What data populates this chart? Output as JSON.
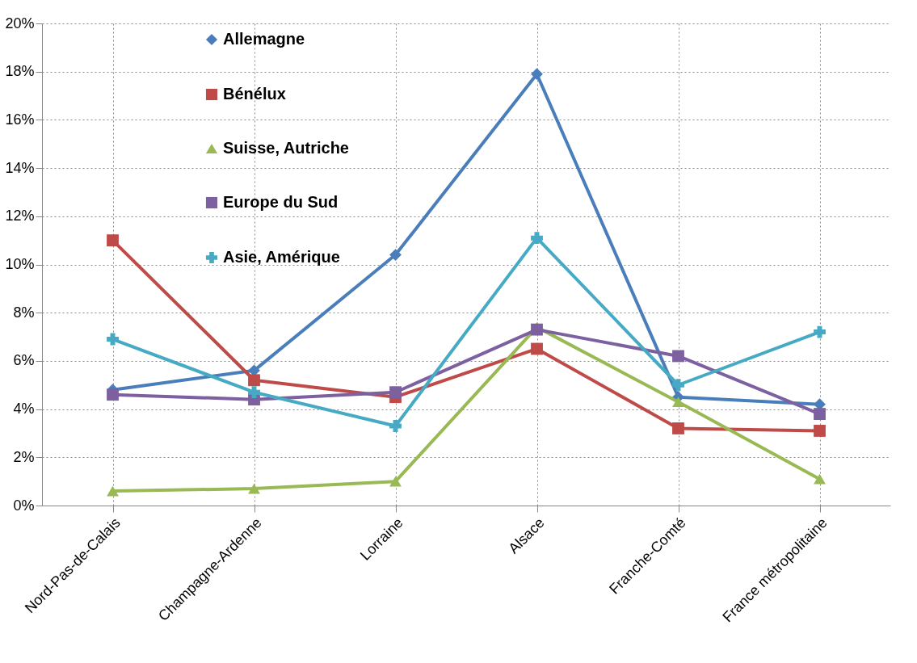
{
  "chart_data": {
    "type": "line",
    "categories": [
      "Nord-Pas-de-Calais",
      "Champagne-Ardenne",
      "Lorraine",
      "Alsace",
      "Franche-Comté",
      "France métropolitaine"
    ],
    "series": [
      {
        "name": "Allemagne",
        "color": "#4a7ebb",
        "marker": "diamond",
        "values": [
          4.8,
          5.6,
          10.4,
          17.9,
          4.5,
          4.2
        ]
      },
      {
        "name": "Bénélux",
        "color": "#be4b48",
        "marker": "square",
        "values": [
          11.0,
          5.2,
          4.5,
          6.5,
          3.2,
          3.1
        ]
      },
      {
        "name": "Suisse, Autriche",
        "color": "#98b954",
        "marker": "triangle",
        "values": [
          0.6,
          0.7,
          1.0,
          7.4,
          4.3,
          1.1
        ]
      },
      {
        "name": "Europe du Sud",
        "color": "#7d60a0",
        "marker": "square",
        "values": [
          4.6,
          4.4,
          4.7,
          7.3,
          6.2,
          3.8
        ]
      },
      {
        "name": "Asie, Amérique",
        "color": "#46aac5",
        "marker": "cross",
        "values": [
          6.9,
          4.7,
          3.3,
          11.1,
          5.0,
          7.2
        ]
      }
    ],
    "ylim": [
      0,
      20
    ],
    "yticks": [
      {
        "value": 0,
        "label": "0%"
      },
      {
        "value": 2,
        "label": "2%"
      },
      {
        "value": 4,
        "label": "4%"
      },
      {
        "value": 6,
        "label": "6%"
      },
      {
        "value": 8,
        "label": "8%"
      },
      {
        "value": 10,
        "label": "10%"
      },
      {
        "value": 12,
        "label": "12%"
      },
      {
        "value": 14,
        "label": "14%"
      },
      {
        "value": 16,
        "label": "16%"
      },
      {
        "value": 18,
        "label": "18%"
      },
      {
        "value": 20,
        "label": "20%"
      }
    ],
    "grid": true,
    "legend": "top left",
    "line_style": "solid"
  }
}
